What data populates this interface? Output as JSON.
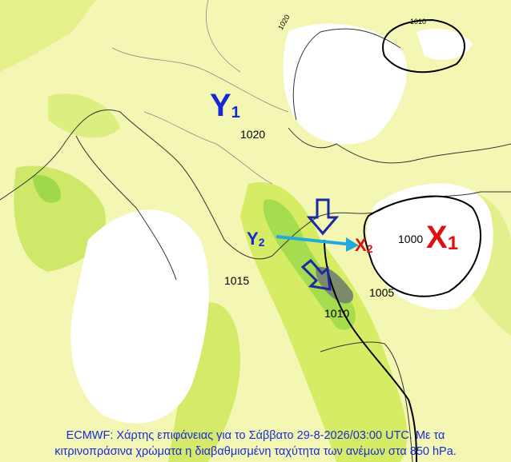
{
  "map": {
    "pressure_centers": [
      {
        "letter": "Y",
        "sub": "1",
        "color": "#1428d8"
      },
      {
        "letter": "Y",
        "sub": "2",
        "color": "#1428d8"
      },
      {
        "letter": "X",
        "sub": "2",
        "color": "#e01010"
      },
      {
        "letter": "X",
        "sub": "1",
        "color": "#e01010"
      }
    ],
    "isobar_labels": [
      "1020",
      "1015",
      "1010",
      "1005",
      "1000",
      "1020",
      "1010"
    ],
    "caption": [
      "ECMWF: Χάρτης επιφάνειας για το Σάββατο 29-8-2026/03:00 UTC. Με τα",
      "κιτρινοπράσινα χρώματα η διαβαθμισμένη ταχύτητα των ανέμων στα 850 hPa."
    ]
  }
}
